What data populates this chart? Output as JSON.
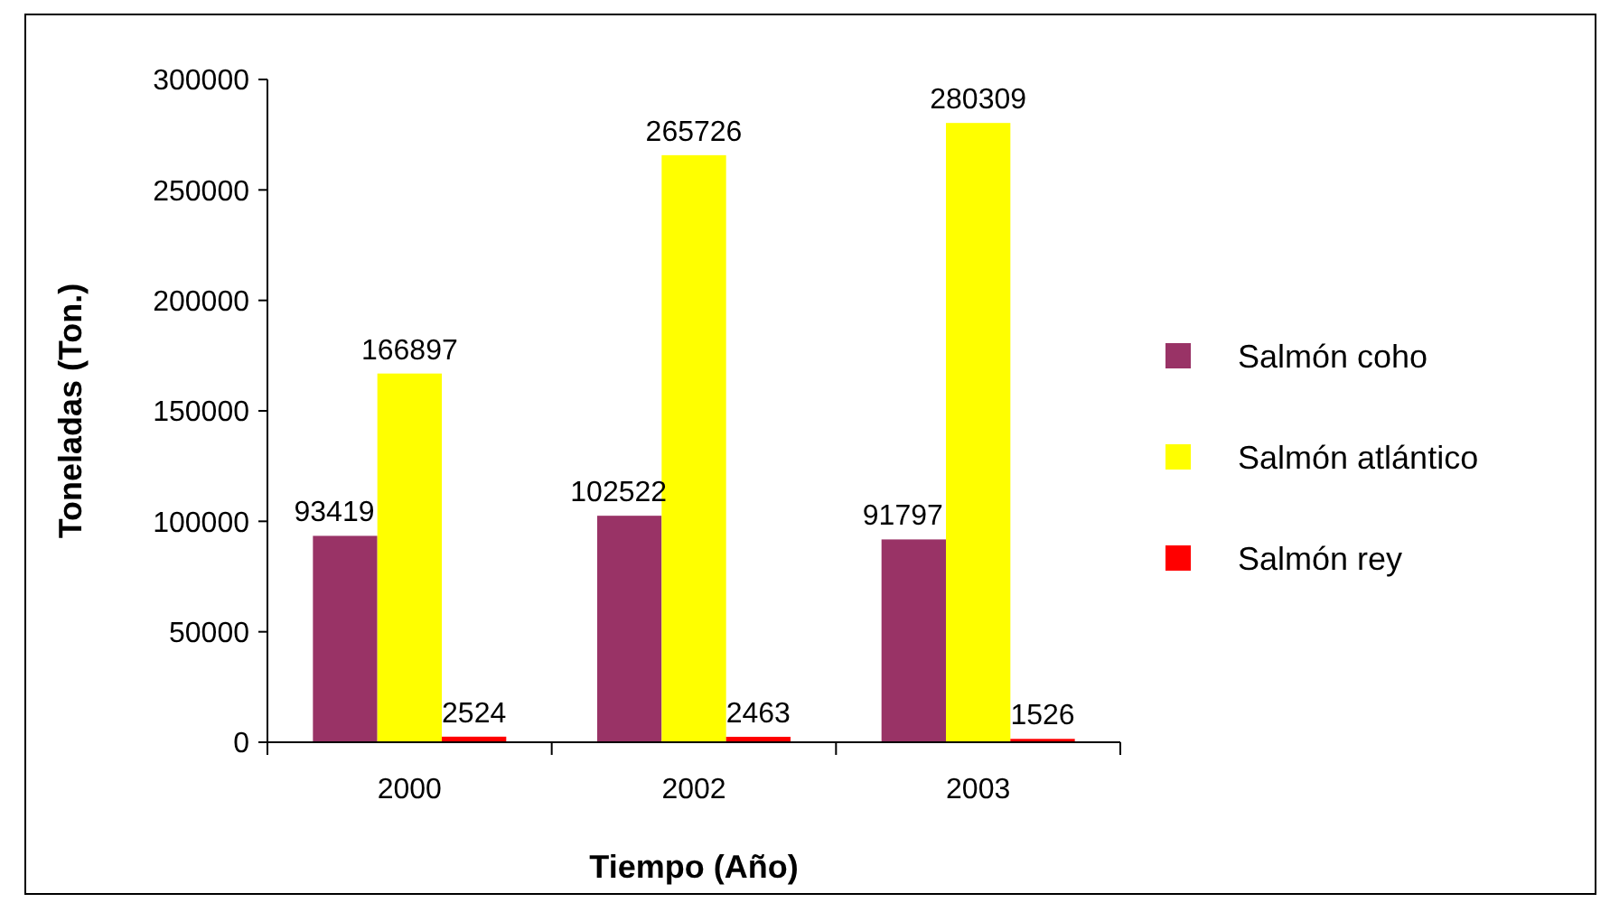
{
  "chart_data": {
    "type": "bar",
    "xlabel": "Tiempo (Año)",
    "ylabel": "Toneladas (Ton.)",
    "categories": [
      "2000",
      "2002",
      "2003"
    ],
    "series": [
      {
        "name": "Salmón coho",
        "color": "#993366",
        "values": [
          93419,
          102522,
          91797
        ]
      },
      {
        "name": "Salmón atlántico",
        "color": "#ffff00",
        "values": [
          166897,
          265726,
          280309
        ]
      },
      {
        "name": "Salmón rey",
        "color": "#ff0000",
        "values": [
          2524,
          2463,
          1526
        ]
      }
    ],
    "ylim": [
      0,
      300000
    ],
    "yticks": [
      0,
      50000,
      100000,
      150000,
      200000,
      250000,
      300000
    ],
    "grid": false,
    "legend": "right",
    "data_labels": true
  }
}
